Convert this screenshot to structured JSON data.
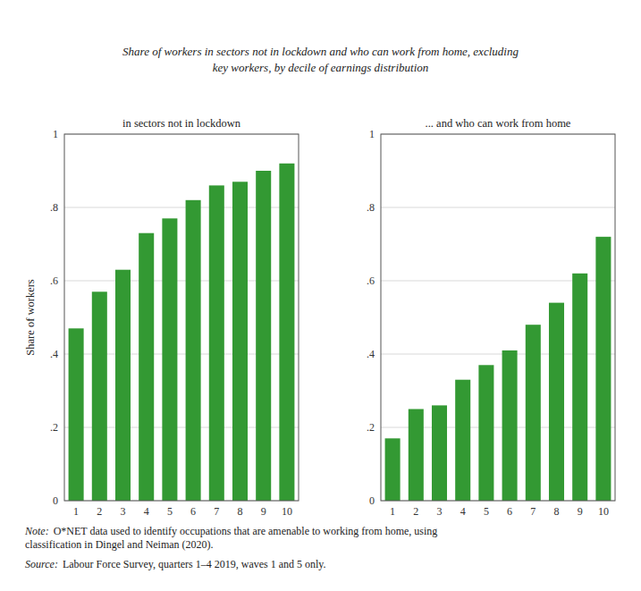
{
  "title": "Share of workers in sectors not in lockdown and who can work from home, excluding\nkey workers, by decile of earnings distribution",
  "annotations": [
    {
      "label": "Note:",
      "text": "O*NET data used to identify occupations that are amenable to working from home, using\nclassification in Dingel and Neiman (2020)."
    },
    {
      "label": "Source:",
      "text": "Labour Force Survey, quarters 1–4 2019, waves 1 and 5 only."
    }
  ],
  "chart_data": [
    {
      "type": "bar",
      "title": "in sectors not in lockdown",
      "ylabel": "Share of workers",
      "categories": [
        1,
        2,
        3,
        4,
        5,
        6,
        7,
        8,
        9,
        10
      ],
      "values": [
        0.47,
        0.57,
        0.63,
        0.73,
        0.77,
        0.82,
        0.86,
        0.87,
        0.9,
        0.92
      ],
      "color": "#339933",
      "ylim": [
        0,
        1.0
      ],
      "yticks": [
        0,
        {
          "value": 0.2,
          "label": ".2"
        },
        {
          "value": 0.4,
          "label": ".4"
        },
        {
          "value": 0.6,
          "label": ".6"
        },
        {
          "value": 0.8,
          "label": ".8"
        },
        1
      ],
      "grid": true
    },
    {
      "type": "bar",
      "title": "... and who can work from home",
      "categories": [
        1,
        2,
        3,
        4,
        5,
        6,
        7,
        8,
        9,
        10
      ],
      "values": [
        0.17,
        0.25,
        0.26,
        0.33,
        0.37,
        0.41,
        0.48,
        0.54,
        0.62,
        0.72
      ],
      "color": "#339933",
      "ylim": [
        0,
        1.0
      ],
      "yticks": [
        0,
        {
          "value": 0.2,
          "label": ".2"
        },
        {
          "value": 0.4,
          "label": ".4"
        },
        {
          "value": 0.6,
          "label": ".6"
        },
        {
          "value": 0.8,
          "label": ".8"
        },
        1
      ],
      "grid": true
    }
  ]
}
